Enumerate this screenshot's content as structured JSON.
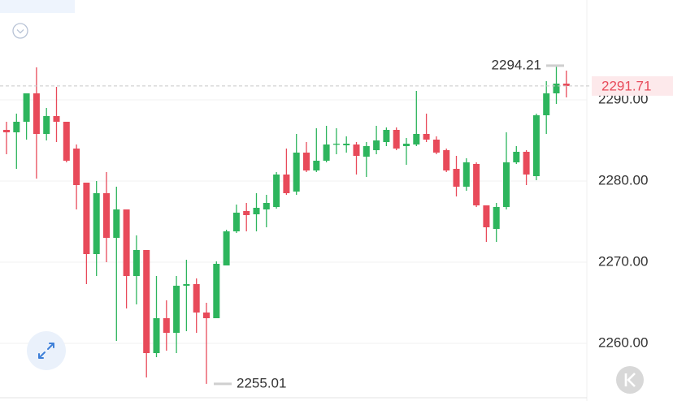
{
  "chart_data": {
    "type": "candlestick",
    "up_color": "#2db55d",
    "down_color": "#e84a5a",
    "ylim": [
      2253.3,
      2302.3
    ],
    "yticks": [
      {
        "value": 2260,
        "label": "2260.00"
      },
      {
        "value": 2270,
        "label": "2270.00"
      },
      {
        "value": 2280,
        "label": "2280.00"
      },
      {
        "value": 2290,
        "label": "2290.00"
      }
    ],
    "grid": true,
    "open": [
      2286.3,
      2286,
      2287.3,
      2290.8,
      2285.8,
      2288,
      2287.3,
      2284,
      2279.8,
      2271,
      2278.5,
      2273,
      2276.5,
      2268.3,
      2271.5,
      2258.8,
      2263.1,
      2261.3,
      2267.1,
      2267.3,
      2263.8,
      2263.1,
      2269.6,
      2273.8,
      2276.3,
      2275.9,
      2276.5,
      2276.8,
      2280.8,
      2278.7,
      2283.5,
      2281.3,
      2282.5,
      2284.5,
      2284.4,
      2284.5,
      2283,
      2283.8,
      2284.8,
      2286.3,
      2284.3,
      2284.5,
      2285.8,
      2285.1,
      2283.8,
      2281.5,
      2279.3,
      2282.1,
      2277,
      2274.1,
      2276.8,
      2282.3,
      2283.6,
      2280.6,
      2288.1,
      2290.8,
      2292
    ],
    "high": [
      2287.3,
      2288.3,
      2290.8,
      2294,
      2289,
      2291.6,
      2287.3,
      2284.5,
      2279.8,
      2280,
      2281.1,
      2279.3,
      2276.5,
      2273.3,
      2271.5,
      2268.3,
      2265.3,
      2268.3,
      2270.3,
      2268,
      2265,
      2270.1,
      2274,
      2277.1,
      2277.3,
      2278.5,
      2278.3,
      2281.1,
      2284,
      2285.8,
      2284.8,
      2286.5,
      2286.8,
      2286.5,
      2285.5,
      2284.8,
      2284.8,
      2286.8,
      2286.6,
      2286.6,
      2285.3,
      2291.1,
      2288.3,
      2285.5,
      2284,
      2283.1,
      2282.8,
      2282.3,
      2277,
      2277.3,
      2286,
      2284.3,
      2283.8,
      2288.3,
      2292.3,
      2294.21,
      2293.6
    ],
    "low": [
      2283.3,
      2281.5,
      2285.1,
      2280.3,
      2285,
      2284.8,
      2282.3,
      2276.5,
      2267.3,
      2268.3,
      2270,
      2260.3,
      2264.3,
      2264.8,
      2255.8,
      2258.3,
      2259.1,
      2258.8,
      2261.5,
      2261.3,
      2255.01,
      2263.1,
      2269.6,
      2273.6,
      2273.8,
      2273.8,
      2274.3,
      2276.6,
      2278.3,
      2278.3,
      2281.1,
      2281.1,
      2282.3,
      2283.3,
      2283.5,
      2280.8,
      2280.5,
      2283.3,
      2284.3,
      2283.8,
      2282,
      2284.3,
      2284.8,
      2283.3,
      2281.1,
      2278.1,
      2278.8,
      2276.8,
      2272.5,
      2272.5,
      2276.5,
      2282.1,
      2279.5,
      2280.1,
      2285.8,
      2289.5,
      2290.3
    ],
    "close": [
      2286,
      2287.3,
      2290.8,
      2285.8,
      2288,
      2287.3,
      2282.5,
      2279.5,
      2271,
      2278.5,
      2273,
      2276.5,
      2268.3,
      2271.5,
      2258.8,
      2263.1,
      2261.3,
      2267.1,
      2267.3,
      2263.8,
      2263.1,
      2269.8,
      2273.8,
      2276.1,
      2275.8,
      2276.7,
      2277.3,
      2280.8,
      2278.5,
      2283.5,
      2281.3,
      2282.5,
      2284.5,
      2284.6,
      2284.6,
      2283.1,
      2284.3,
      2285,
      2286.3,
      2284,
      2284.6,
      2285.8,
      2285.1,
      2283.5,
      2281.3,
      2279.3,
      2282.3,
      2277,
      2274.3,
      2276.8,
      2282.3,
      2283.6,
      2280.8,
      2288.1,
      2290.8,
      2292,
      2291.71
    ],
    "last_price": 2291.71,
    "max_label": 2294.21,
    "min_label": 2255.01
  }
}
